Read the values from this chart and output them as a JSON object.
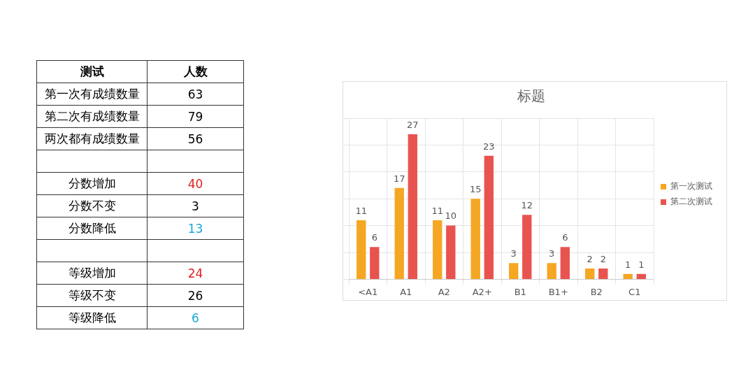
{
  "chart_data": [
    {
      "type": "other",
      "annotations": [
        "测试",
        "人数"
      ],
      "data_labels": true,
      "categories": [
        "第一次有成绩数量",
        "第二次有成绩数量",
        "两次都有成绩数量",
        null,
        "分数增加",
        "分数不变",
        "分数降低",
        null,
        "等级增加",
        "等级不变",
        "等级降低"
      ],
      "values": [
        63,
        79,
        56,
        null,
        40,
        3,
        13,
        null,
        24,
        26,
        6
      ],
      "colors": [
        "#000000",
        "#000000",
        "#000000",
        null,
        "#e02020",
        "#000000",
        "#1aa7d8",
        null,
        "#e02020",
        "#000000",
        "#1aa7d8"
      ]
    },
    {
      "type": "bar",
      "title": "标题",
      "categories": [
        "<A1",
        "A1",
        "A2",
        "A2+",
        "B1",
        "B1+",
        "B2",
        "C1"
      ],
      "series": [
        {
          "name": "第一次测试",
          "color": "#f5a623",
          "values": [
            11,
            17,
            11,
            15,
            3,
            3,
            2,
            1
          ]
        },
        {
          "name": "第二次测试",
          "color": "#e9534f",
          "values": [
            6,
            27,
            10,
            23,
            12,
            6,
            2,
            1
          ]
        }
      ],
      "ylim": [
        0,
        30
      ],
      "yticks": [
        0,
        5,
        10,
        15,
        20,
        25,
        30
      ],
      "tick_labels": "x",
      "grid": true,
      "legend": "right",
      "data_labels": true
    }
  ]
}
